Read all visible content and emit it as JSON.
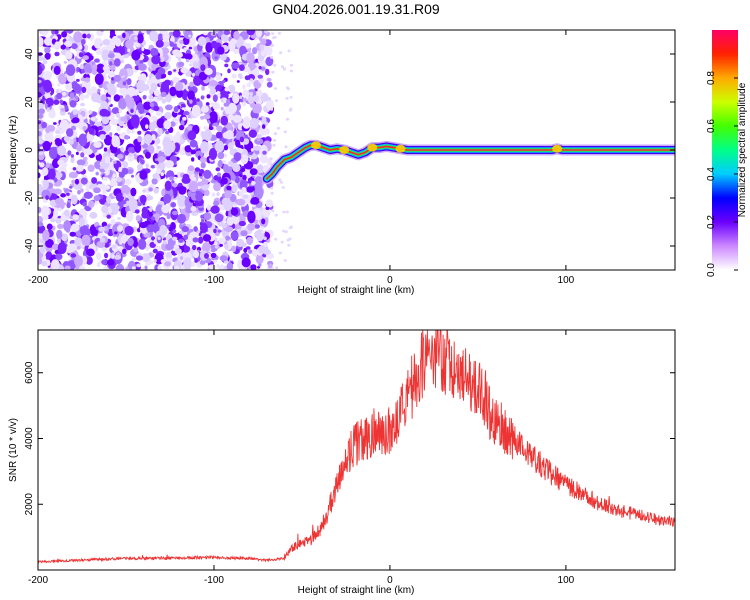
{
  "figure": {
    "title": "GN04.2026.001.19.31.R09"
  },
  "chart_data": [
    {
      "type": "heatmap",
      "xlabel": "Height of straight line (km)",
      "ylabel": "Frequency (Hz)",
      "xlim": [
        -200,
        162
      ],
      "ylim": [
        -50,
        50
      ],
      "xticks": [
        "-200",
        "-100",
        "0",
        "100"
      ],
      "yticks": [
        "-40",
        "-20",
        "0",
        "20",
        "40"
      ],
      "colorbar": {
        "label": "Normalized spectral amplitude",
        "range": [
          0,
          1
        ],
        "ticks": [
          "0.0",
          "0.2",
          "0.4",
          "0.6",
          "0.8"
        ],
        "colors": [
          "#ffffff",
          "#cc88ff",
          "#6a00ff",
          "#0000ff",
          "#00ccff",
          "#00ff88",
          "#44ff00",
          "#ccff00",
          "#ffaa00",
          "#ff2200",
          "#ff0066"
        ]
      },
      "noise_region": {
        "x_range": [
          -200,
          -68
        ],
        "y_range": [
          -50,
          50
        ]
      },
      "ridge": {
        "x": [
          -70,
          -67,
          -64,
          -60,
          -56,
          -52,
          -48,
          -45,
          -42,
          -38,
          -34,
          -30,
          -26,
          -22,
          -18,
          -14,
          -10,
          -6,
          -2,
          2,
          6,
          10,
          14,
          18,
          22,
          26,
          40,
          60,
          80,
          92,
          95,
          98,
          110,
          130,
          150,
          162
        ],
        "y": [
          -12,
          -10,
          -7,
          -4,
          -3,
          -1,
          1,
          2,
          2,
          1,
          0,
          0.5,
          0,
          -1,
          -2,
          -1,
          1,
          1,
          1.5,
          1,
          0.5,
          0,
          0,
          0,
          0,
          0,
          0,
          0,
          0,
          0,
          0.5,
          0,
          0,
          0,
          0,
          0
        ]
      }
    },
    {
      "type": "line",
      "xlabel": "Height of straight line (km)",
      "ylabel": "SNR (10 * v/v)",
      "xlim": [
        -200,
        162
      ],
      "ylim": [
        0,
        7300
      ],
      "xticks": [
        "-200",
        "-100",
        "0",
        "100"
      ],
      "yticks": [
        "2000",
        "4000",
        "6000"
      ],
      "series": [
        {
          "color": "#ee3333",
          "x": [
            -200,
            -150,
            -100,
            -80,
            -70,
            -60,
            -55,
            -50,
            -45,
            -40,
            -35,
            -30,
            -25,
            -20,
            -15,
            -10,
            -5,
            0,
            5,
            10,
            15,
            20,
            25,
            30,
            35,
            40,
            45,
            50,
            55,
            60,
            70,
            80,
            90,
            100,
            110,
            120,
            130,
            140,
            150,
            162
          ],
          "y": [
            250,
            350,
            380,
            350,
            300,
            350,
            700,
            800,
            900,
            1200,
            1800,
            2600,
            3300,
            3800,
            4000,
            4200,
            4200,
            4300,
            4600,
            5200,
            5900,
            6500,
            6700,
            6500,
            6200,
            6000,
            5800,
            5500,
            5000,
            4600,
            4000,
            3500,
            3000,
            2600,
            2300,
            2000,
            1800,
            1700,
            1550,
            1450
          ]
        }
      ]
    }
  ]
}
